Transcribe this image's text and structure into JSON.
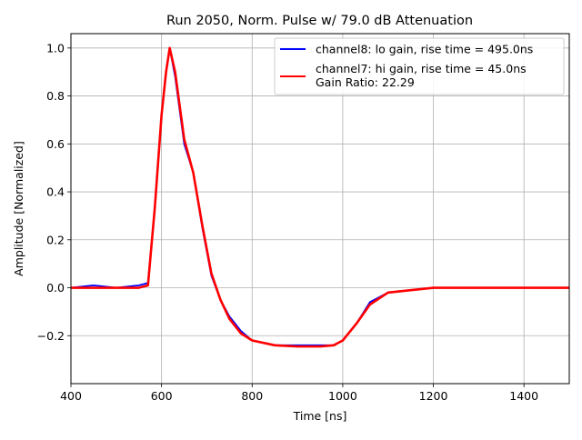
{
  "chart_data": {
    "type": "line",
    "title": "Run 2050, Norm. Pulse w/ 79.0 dB Attenuation",
    "xlabel": "Time [ns]",
    "ylabel": "Amplitude [Normalized]",
    "xlim": [
      400,
      1500
    ],
    "ylim": [
      -0.4,
      1.06
    ],
    "xticks": [
      400,
      600,
      800,
      1000,
      1200,
      1400
    ],
    "yticks": [
      -0.2,
      0.0,
      0.2,
      0.4,
      0.6,
      0.8,
      1.0
    ],
    "xtick_labels": [
      "400",
      "600",
      "800",
      "1000",
      "1200",
      "1400"
    ],
    "ytick_labels": [
      "−0.2",
      "0.0",
      "0.2",
      "0.4",
      "0.6",
      "0.8",
      "1.0"
    ],
    "grid": true,
    "legend_position": "top-right",
    "series": [
      {
        "name": "channel8: lo gain, rise time = 495.0ns",
        "color": "#0000ff",
        "x": [
          400,
          450,
          500,
          550,
          570,
          585,
          600,
          610,
          618,
          630,
          650,
          670,
          690,
          710,
          730,
          750,
          775,
          800,
          850,
          900,
          950,
          980,
          1000,
          1030,
          1060,
          1100,
          1150,
          1200,
          1300,
          1400,
          1500
        ],
        "y": [
          0.0,
          0.01,
          0.0,
          0.01,
          0.02,
          0.33,
          0.72,
          0.9,
          1.0,
          0.88,
          0.6,
          0.48,
          0.25,
          0.05,
          -0.05,
          -0.12,
          -0.18,
          -0.22,
          -0.24,
          -0.24,
          -0.24,
          -0.24,
          -0.22,
          -0.15,
          -0.06,
          -0.02,
          -0.01,
          0.0,
          0.0,
          0.0,
          0.0
        ]
      },
      {
        "name": "channel7: hi gain, rise time = 45.0ns",
        "color": "#ff0000",
        "x": [
          400,
          450,
          500,
          550,
          570,
          585,
          600,
          610,
          618,
          630,
          650,
          670,
          690,
          710,
          730,
          750,
          775,
          800,
          850,
          900,
          950,
          980,
          1000,
          1030,
          1060,
          1100,
          1150,
          1200,
          1300,
          1400,
          1500
        ],
        "y": [
          0.0,
          0.0,
          0.0,
          0.0,
          0.01,
          0.33,
          0.72,
          0.9,
          1.0,
          0.9,
          0.62,
          0.48,
          0.26,
          0.06,
          -0.05,
          -0.13,
          -0.19,
          -0.22,
          -0.24,
          -0.245,
          -0.245,
          -0.24,
          -0.22,
          -0.15,
          -0.07,
          -0.02,
          -0.01,
          0.0,
          0.0,
          0.0,
          0.0
        ]
      }
    ],
    "legend_extra_line": "Gain Ratio: 22.29"
  }
}
